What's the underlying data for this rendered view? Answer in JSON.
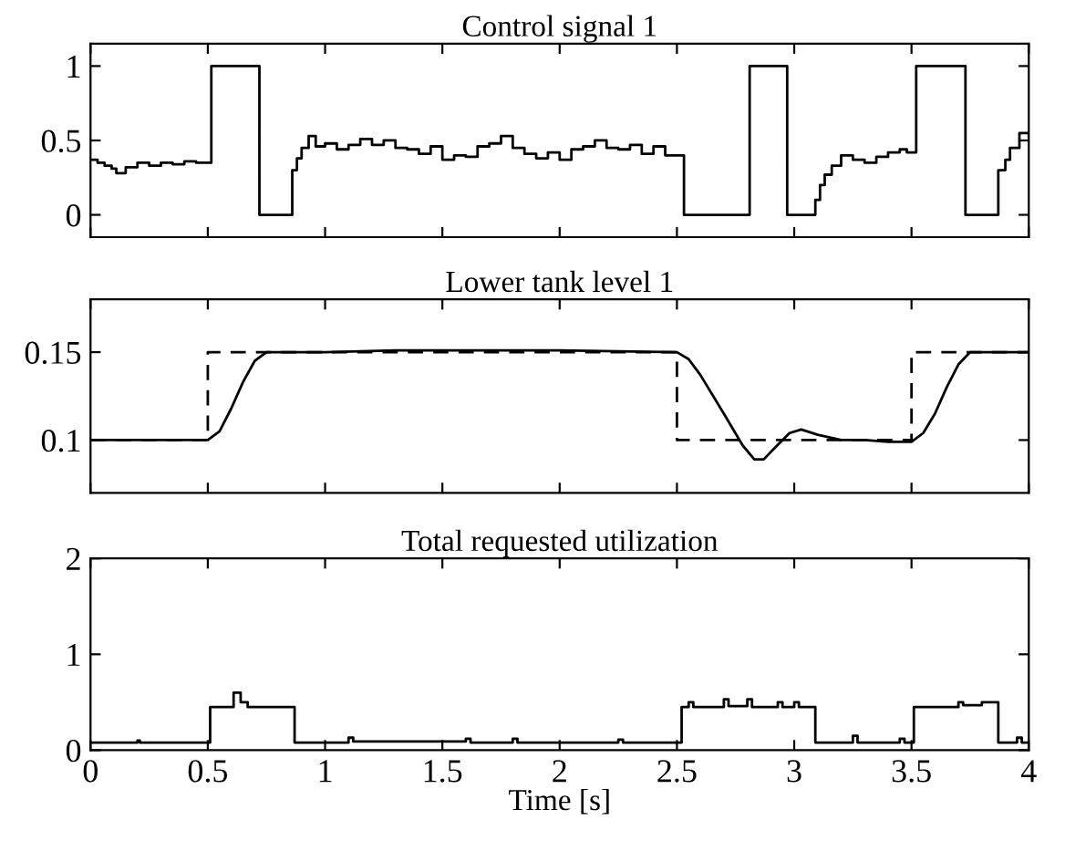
{
  "chart_data": [
    {
      "type": "step",
      "title": "Control signal 1",
      "xlim": [
        0,
        4
      ],
      "ylim": [
        -0.15,
        1.15
      ],
      "xticks": [
        0,
        0.5,
        1,
        1.5,
        2,
        2.5,
        3,
        3.5,
        4
      ],
      "yticks": [
        0,
        0.5,
        1
      ],
      "tick_labels": "y",
      "series": [
        {
          "color": "#000000",
          "line_style": "solid",
          "x": [
            0,
            0.03,
            0.06,
            0.09,
            0.11,
            0.15,
            0.2,
            0.25,
            0.3,
            0.35,
            0.4,
            0.45,
            0.515,
            0.72,
            0.86,
            0.88,
            0.9,
            0.93,
            0.96,
            1.0,
            1.05,
            1.1,
            1.15,
            1.2,
            1.25,
            1.3,
            1.35,
            1.4,
            1.45,
            1.5,
            1.55,
            1.6,
            1.65,
            1.7,
            1.75,
            1.8,
            1.85,
            1.9,
            1.95,
            2.0,
            2.05,
            2.1,
            2.15,
            2.2,
            2.25,
            2.3,
            2.35,
            2.4,
            2.45,
            2.53,
            2.81,
            2.97,
            3.09,
            3.11,
            3.13,
            3.16,
            3.2,
            3.25,
            3.3,
            3.35,
            3.4,
            3.45,
            3.48,
            3.52,
            3.73,
            3.87,
            3.9,
            3.92,
            3.96,
            4.0
          ],
          "values": [
            0.37,
            0.35,
            0.33,
            0.31,
            0.28,
            0.32,
            0.35,
            0.33,
            0.35,
            0.34,
            0.36,
            0.35,
            1,
            0,
            0.3,
            0.38,
            0.45,
            0.53,
            0.46,
            0.48,
            0.44,
            0.47,
            0.51,
            0.47,
            0.5,
            0.45,
            0.44,
            0.41,
            0.46,
            0.37,
            0.4,
            0.39,
            0.46,
            0.48,
            0.53,
            0.45,
            0.41,
            0.38,
            0.42,
            0.37,
            0.44,
            0.46,
            0.5,
            0.45,
            0.44,
            0.47,
            0.41,
            0.46,
            0.4,
            0,
            1,
            0,
            0.1,
            0.2,
            0.27,
            0.33,
            0.4,
            0.37,
            0.35,
            0.39,
            0.42,
            0.44,
            0.42,
            1,
            0,
            0.3,
            0.37,
            0.45,
            0.55,
            0.53
          ]
        }
      ]
    },
    {
      "type": "line",
      "title": "Lower tank level 1",
      "xlim": [
        0,
        4
      ],
      "ylim": [
        0.07,
        0.18
      ],
      "xticks": [
        0,
        0.5,
        1,
        1.5,
        2,
        2.5,
        3,
        3.5,
        4
      ],
      "yticks": [
        0.1,
        0.15
      ],
      "tick_labels": "y",
      "series": [
        {
          "color": "#000000",
          "line_style": "solid",
          "x": [
            0,
            0.5,
            0.55,
            0.6,
            0.65,
            0.7,
            0.75,
            1.0,
            1.3,
            1.5,
            2.0,
            2.5,
            2.55,
            2.6,
            2.7,
            2.78,
            2.83,
            2.87,
            2.92,
            2.98,
            3.03,
            3.1,
            3.2,
            3.3,
            3.4,
            3.5,
            3.55,
            3.6,
            3.65,
            3.7,
            3.75,
            4
          ],
          "values": [
            0.1,
            0.1,
            0.105,
            0.118,
            0.133,
            0.145,
            0.15,
            0.15,
            0.151,
            0.151,
            0.151,
            0.15,
            0.146,
            0.137,
            0.115,
            0.097,
            0.089,
            0.089,
            0.096,
            0.104,
            0.106,
            0.103,
            0.1,
            0.1,
            0.099,
            0.099,
            0.104,
            0.115,
            0.13,
            0.143,
            0.15,
            0.15
          ]
        },
        {
          "type": "step",
          "color": "#000000",
          "line_style": "dashed",
          "x": [
            0,
            0.5,
            2.5,
            3.5,
            4
          ],
          "values": [
            0.1,
            0.15,
            0.1,
            0.15,
            0.15
          ]
        }
      ]
    },
    {
      "type": "step",
      "title": "Total requested utilization",
      "xlabel": "Time [s]",
      "xlim": [
        0,
        4
      ],
      "ylim": [
        0,
        2
      ],
      "xticks": [
        0,
        0.5,
        1,
        1.5,
        2,
        2.5,
        3,
        3.5,
        4
      ],
      "yticks": [
        0,
        1,
        2
      ],
      "series": [
        {
          "color": "#000000",
          "line_style": "solid",
          "x": [
            0,
            0.2,
            0.21,
            0.51,
            0.61,
            0.64,
            0.67,
            0.87,
            1.1,
            1.12,
            1.6,
            1.62,
            1.8,
            1.82,
            2.25,
            2.27,
            2.52,
            2.55,
            2.57,
            2.7,
            2.72,
            2.8,
            2.82,
            2.93,
            2.95,
            3.0,
            3.02,
            3.09,
            3.25,
            3.27,
            3.45,
            3.47,
            3.51,
            3.7,
            3.72,
            3.8,
            3.87,
            3.95,
            3.97,
            4.0
          ],
          "values": [
            0.08,
            0.1,
            0.08,
            0.45,
            0.6,
            0.5,
            0.45,
            0.08,
            0.13,
            0.09,
            0.12,
            0.08,
            0.12,
            0.08,
            0.11,
            0.08,
            0.45,
            0.5,
            0.45,
            0.53,
            0.46,
            0.53,
            0.45,
            0.5,
            0.45,
            0.5,
            0.45,
            0.08,
            0.15,
            0.08,
            0.12,
            0.08,
            0.45,
            0.5,
            0.47,
            0.5,
            0.08,
            0.13,
            0.08,
            0.08
          ]
        }
      ]
    }
  ]
}
